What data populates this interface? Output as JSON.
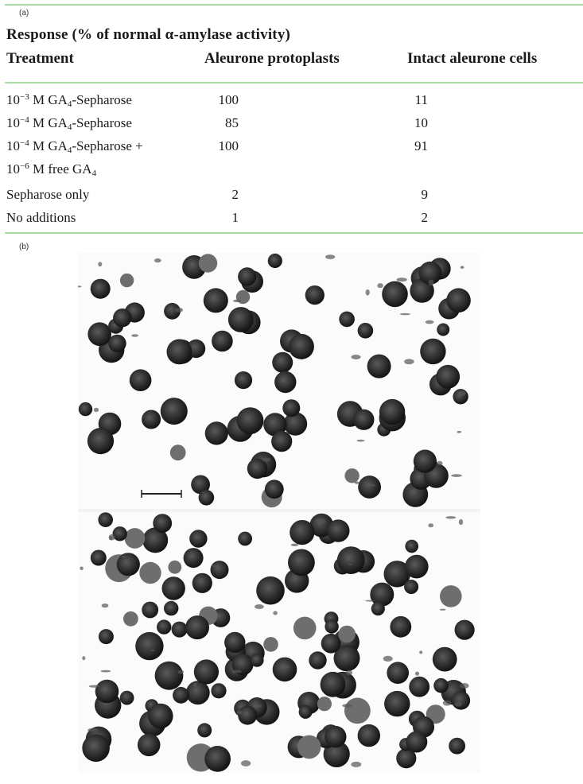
{
  "panel_a_label": "(a)",
  "panel_b_label": "(b)",
  "table": {
    "title": "Response (% of normal α-amylase activity)",
    "headers": {
      "treatment": "Treatment",
      "protoplasts": "Aleurone protoplasts",
      "intact": "Intact aleurone cells"
    },
    "rows": [
      {
        "exp": "−3",
        "mid": " M GA",
        "sub": "4",
        "tail": "-Sepharose",
        "protoplasts": "100",
        "intact": "11"
      },
      {
        "exp": "−4",
        "mid": " M GA",
        "sub": "4",
        "tail": "-Sepharose",
        "protoplasts": "85",
        "intact": "10"
      },
      {
        "exp": "−4",
        "mid": " M GA",
        "sub": "4",
        "tail": "-Sepharose +",
        "protoplasts": "100",
        "intact": "91"
      },
      {
        "exp": "−6",
        "mid": " M free GA",
        "sub": "4",
        "tail": "",
        "protoplasts": "",
        "intact": ""
      },
      {
        "text": "Sepharose only",
        "protoplasts": "2",
        "intact": "9"
      },
      {
        "text": "No additions",
        "protoplasts": "1",
        "intact": "2"
      }
    ]
  }
}
